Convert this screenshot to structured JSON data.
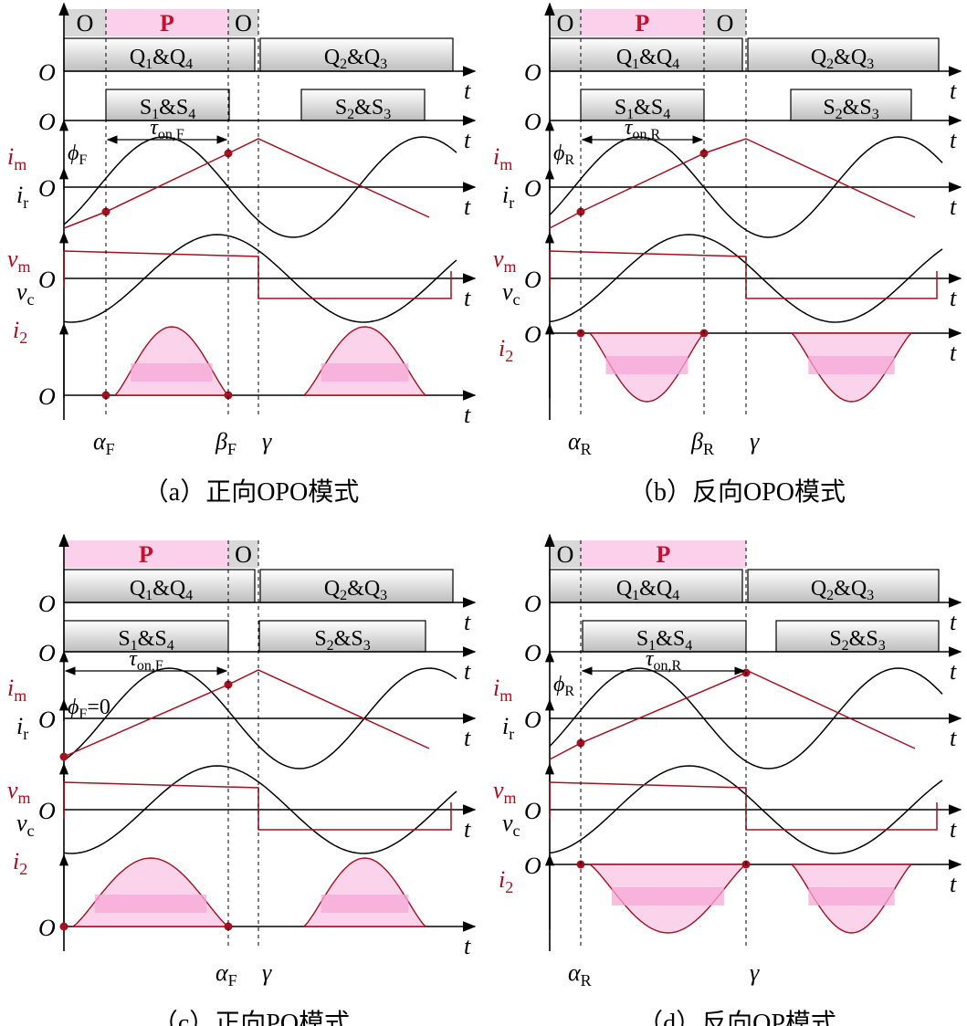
{
  "colors": {
    "mode_pink": "#fbd0ea",
    "mode_gray": "#d8d8d8",
    "red": "#a50f1e",
    "fill_light": "#fbd3ea",
    "fill_mid": "#f6a8d6"
  },
  "panels": [
    {
      "id": "a",
      "modes": [
        "O",
        "P",
        "O"
      ],
      "gate1": [
        "Q",
        "1",
        "&Q",
        "4"
      ],
      "gate2": [
        "Q",
        "2",
        "&Q",
        "3"
      ],
      "sw1": [
        "S",
        "1",
        "&S",
        "4"
      ],
      "sw2": [
        "S",
        "2",
        "&S",
        "3"
      ],
      "phi": [
        "ϕ",
        "F"
      ],
      "tau": [
        "τ",
        "on,F"
      ],
      "im": [
        "i",
        "m"
      ],
      "ir": [
        "i",
        "r"
      ],
      "vm": [
        "v",
        "m"
      ],
      "vc": [
        "v",
        "c"
      ],
      "i2": [
        "i",
        "2"
      ],
      "origin": "O",
      "t": "t",
      "marks": [
        [
          "α",
          "F"
        ],
        [
          "β",
          "F"
        ],
        [
          "γ",
          ""
        ]
      ],
      "caption": "（a）正向OPO模式"
    },
    {
      "id": "b",
      "modes": [
        "O",
        "P",
        "O"
      ],
      "gate1": [
        "Q",
        "1",
        "&Q",
        "4"
      ],
      "gate2": [
        "Q",
        "2",
        "&Q",
        "3"
      ],
      "sw1": [
        "S",
        "1",
        "&S",
        "4"
      ],
      "sw2": [
        "S",
        "2",
        "&S",
        "3"
      ],
      "phi": [
        "ϕ",
        "R"
      ],
      "tau": [
        "τ",
        "on,R"
      ],
      "im": [
        "i",
        "m"
      ],
      "ir": [
        "i",
        "r"
      ],
      "vm": [
        "v",
        "m"
      ],
      "vc": [
        "v",
        "c"
      ],
      "i2": [
        "i",
        "2"
      ],
      "origin": "O",
      "t": "t",
      "marks": [
        [
          "α",
          "R"
        ],
        [
          "β",
          "R"
        ],
        [
          "γ",
          ""
        ]
      ],
      "caption": "（b）反向OPO模式"
    },
    {
      "id": "c",
      "modes": [
        "P",
        "O"
      ],
      "gate1": [
        "Q",
        "1",
        "&Q",
        "4"
      ],
      "gate2": [
        "Q",
        "2",
        "&Q",
        "3"
      ],
      "sw1": [
        "S",
        "1",
        "&S",
        "4"
      ],
      "sw2": [
        "S",
        "2",
        "&S",
        "3"
      ],
      "phi": [
        "ϕ",
        "F",
        "=0"
      ],
      "tau": [
        "τ",
        "on,F"
      ],
      "im": [
        "i",
        "m"
      ],
      "ir": [
        "i",
        "r"
      ],
      "vm": [
        "v",
        "m"
      ],
      "vc": [
        "v",
        "c"
      ],
      "i2": [
        "i",
        "2"
      ],
      "origin": "O",
      "t": "t",
      "marks": [
        [
          "α",
          "F"
        ],
        [
          "γ",
          ""
        ]
      ],
      "caption": "（c）正向PO模式"
    },
    {
      "id": "d",
      "modes": [
        "O",
        "P"
      ],
      "gate1": [
        "Q",
        "1",
        "&Q",
        "4"
      ],
      "gate2": [
        "Q",
        "2",
        "&Q",
        "3"
      ],
      "sw1": [
        "S",
        "1",
        "&S",
        "4"
      ],
      "sw2": [
        "S",
        "2",
        "&S",
        "3"
      ],
      "phi": [
        "ϕ",
        "R"
      ],
      "tau": [
        "τ",
        "on,R"
      ],
      "im": [
        "i",
        "m"
      ],
      "ir": [
        "i",
        "r"
      ],
      "vm": [
        "v",
        "m"
      ],
      "vc": [
        "v",
        "c"
      ],
      "i2": [
        "i",
        "2"
      ],
      "origin": "O",
      "t": "t",
      "marks": [
        [
          "α",
          "R"
        ],
        [
          "γ",
          ""
        ]
      ],
      "caption": "（d）反向OP模式"
    }
  ]
}
